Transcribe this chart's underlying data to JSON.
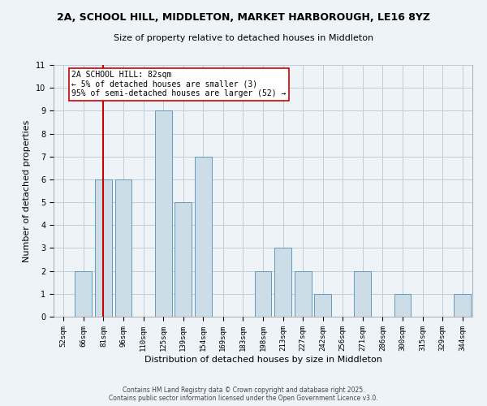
{
  "title": "2A, SCHOOL HILL, MIDDLETON, MARKET HARBOROUGH, LE16 8YZ",
  "subtitle": "Size of property relative to detached houses in Middleton",
  "xlabel": "Distribution of detached houses by size in Middleton",
  "ylabel": "Number of detached properties",
  "categories": [
    "52sqm",
    "66sqm",
    "81sqm",
    "96sqm",
    "110sqm",
    "125sqm",
    "139sqm",
    "154sqm",
    "169sqm",
    "183sqm",
    "198sqm",
    "213sqm",
    "227sqm",
    "242sqm",
    "256sqm",
    "271sqm",
    "286sqm",
    "300sqm",
    "315sqm",
    "329sqm",
    "344sqm"
  ],
  "values": [
    0,
    2,
    6,
    6,
    0,
    9,
    5,
    7,
    0,
    0,
    2,
    3,
    2,
    1,
    0,
    2,
    0,
    1,
    0,
    0,
    1
  ],
  "bar_color": "#ccdde8",
  "bar_edge_color": "#6699bb",
  "vline_x_index": 2,
  "vline_color": "#cc0000",
  "ylim": [
    0,
    11
  ],
  "yticks": [
    0,
    1,
    2,
    3,
    4,
    5,
    6,
    7,
    8,
    9,
    10,
    11
  ],
  "annotation_text": "2A SCHOOL HILL: 82sqm\n← 5% of detached houses are smaller (3)\n95% of semi-detached houses are larger (52) →",
  "annotation_box_color": "#ffffff",
  "annotation_box_edge": "#cc0000",
  "footer_line1": "Contains HM Land Registry data © Crown copyright and database right 2025.",
  "footer_line2": "Contains public sector information licensed under the Open Government Licence v3.0.",
  "background_color": "#eef3f8",
  "grid_color": "#c0cdd8",
  "title_fontsize": 9,
  "subtitle_fontsize": 8,
  "axis_label_fontsize": 8,
  "tick_fontsize": 6.5,
  "annotation_fontsize": 7,
  "footer_fontsize": 5.5
}
